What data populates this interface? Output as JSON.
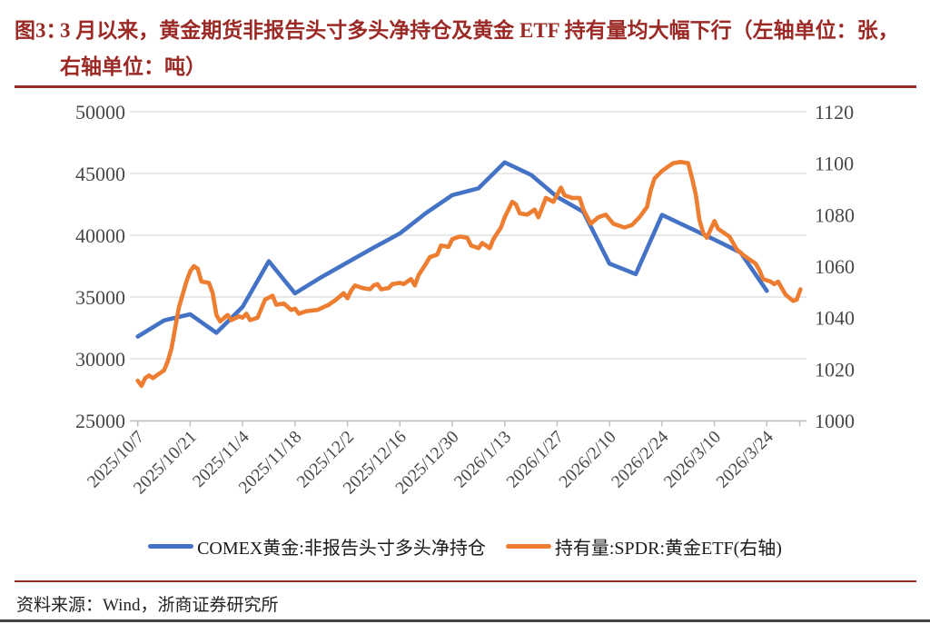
{
  "page": {
    "figure_label": "图3：",
    "figure_title": "3 月以来，黄金期货非报告头寸多头净持仓及黄金 ETF 持有量均大幅下行（左轴单位：张，右轴单位：吨）",
    "source": "资料来源：Wind，浙商证券研究所"
  },
  "colors": {
    "title_red": "#9B2A26",
    "rule_red": "#9B2A26",
    "blue_series": "#4472C4",
    "orange_series": "#ED7D31",
    "grid": "#D9D9D9",
    "axis": "#BFBFBF",
    "tick_text": "#484848",
    "bottom_border": "#444444"
  },
  "chart_data": {
    "type": "line",
    "dual_axis": true,
    "grid": "horizontal",
    "legend_position": "bottom",
    "x_tick_labels": [
      "2025/10/7",
      "2025/10/21",
      "2025/11/4",
      "2025/11/18",
      "2025/12/2",
      "2025/12/16",
      "2025/12/30",
      "2026/1/13",
      "2026/1/27",
      "2026/2/10",
      "2026/2/24",
      "2026/3/10",
      "2026/3/24"
    ],
    "x_tick_days": [
      0,
      14,
      28,
      42,
      56,
      70,
      84,
      98,
      112,
      126,
      140,
      154,
      168
    ],
    "left_axis": {
      "min": 25000,
      "max": 50000,
      "step": 5000,
      "unit": "张",
      "tick_labels": [
        "25000",
        "30000",
        "35000",
        "40000",
        "45000",
        "50000"
      ]
    },
    "right_axis": {
      "min": 1000,
      "max": 1120,
      "step": 20,
      "unit": "吨",
      "tick_labels": [
        "1000",
        "1020",
        "1040",
        "1060",
        "1080",
        "1100",
        "1120"
      ]
    },
    "series": [
      {
        "name": "COMEX黄金:非报告头寸多头净持仓",
        "axis": "left",
        "color": "#4472C4",
        "points": [
          [
            0,
            31800
          ],
          [
            7,
            33100
          ],
          [
            14,
            33600
          ],
          [
            21,
            32100
          ],
          [
            28,
            34200
          ],
          [
            35,
            37900
          ],
          [
            42,
            35300
          ],
          [
            49,
            36600
          ],
          [
            56,
            37800
          ],
          [
            63,
            39000
          ],
          [
            70,
            40150
          ],
          [
            77,
            41800
          ],
          [
            84,
            43250
          ],
          [
            91,
            43800
          ],
          [
            98,
            45900
          ],
          [
            105,
            44900
          ],
          [
            112,
            43100
          ],
          [
            119,
            41900
          ],
          [
            126,
            37700
          ],
          [
            133,
            36850
          ],
          [
            140,
            41650
          ],
          [
            147,
            40650
          ],
          [
            154,
            39650
          ],
          [
            161,
            38600
          ],
          [
            168,
            35500
          ]
        ]
      },
      {
        "name": "持有量:SPDR:黄金ETF(右轴)",
        "axis": "right",
        "color": "#ED7D31",
        "points": [
          [
            0,
            1015.5
          ],
          [
            1,
            1013.5
          ],
          [
            2,
            1016.5
          ],
          [
            3,
            1017.5
          ],
          [
            4,
            1016.5
          ],
          [
            6,
            1018.5
          ],
          [
            7,
            1019.5
          ],
          [
            8,
            1023
          ],
          [
            9,
            1028
          ],
          [
            10,
            1036
          ],
          [
            11,
            1044
          ],
          [
            13,
            1054
          ],
          [
            14,
            1058
          ],
          [
            15,
            1060
          ],
          [
            16,
            1059
          ],
          [
            17,
            1054
          ],
          [
            19,
            1053.5
          ],
          [
            20,
            1049.5
          ],
          [
            21,
            1041
          ],
          [
            22,
            1038.5
          ],
          [
            24,
            1041
          ],
          [
            25,
            1039
          ],
          [
            27,
            1040.5
          ],
          [
            28,
            1040
          ],
          [
            29,
            1041.5
          ],
          [
            30,
            1039
          ],
          [
            32,
            1040
          ],
          [
            34,
            1047
          ],
          [
            36,
            1048.5
          ],
          [
            37,
            1045
          ],
          [
            39,
            1045.5
          ],
          [
            41,
            1043
          ],
          [
            42,
            1043.5
          ],
          [
            43,
            1041.5
          ],
          [
            45,
            1042.5
          ],
          [
            48,
            1043
          ],
          [
            51,
            1045
          ],
          [
            53,
            1047
          ],
          [
            55,
            1049.5
          ],
          [
            56,
            1047.5
          ],
          [
            57,
            1050.5
          ],
          [
            58,
            1052.5
          ],
          [
            60,
            1051.5
          ],
          [
            62,
            1051
          ],
          [
            63,
            1052.5
          ],
          [
            64,
            1053
          ],
          [
            65,
            1051
          ],
          [
            67,
            1051.5
          ],
          [
            68,
            1053
          ],
          [
            70,
            1053.5
          ],
          [
            71,
            1053
          ],
          [
            73,
            1055
          ],
          [
            74,
            1052.5
          ],
          [
            75,
            1056.5
          ],
          [
            77,
            1061
          ],
          [
            78,
            1063.5
          ],
          [
            80,
            1064.5
          ],
          [
            81,
            1068
          ],
          [
            83,
            1067.5
          ],
          [
            84,
            1070.5
          ],
          [
            86,
            1071.5
          ],
          [
            88,
            1071
          ],
          [
            89,
            1068
          ],
          [
            91,
            1067
          ],
          [
            92,
            1069
          ],
          [
            94,
            1067
          ],
          [
            95,
            1070.5
          ],
          [
            97,
            1075
          ],
          [
            98,
            1079
          ],
          [
            100,
            1085
          ],
          [
            101,
            1084
          ],
          [
            102,
            1080.5
          ],
          [
            104,
            1080
          ],
          [
            106,
            1082
          ],
          [
            107,
            1079
          ],
          [
            109,
            1086.5
          ],
          [
            111,
            1085
          ],
          [
            113,
            1090.5
          ],
          [
            114,
            1087.5
          ],
          [
            116,
            1086.5
          ],
          [
            118,
            1086.5
          ],
          [
            119,
            1082
          ],
          [
            121,
            1076.5
          ],
          [
            123,
            1079
          ],
          [
            125,
            1080
          ],
          [
            127,
            1076.5
          ],
          [
            130,
            1075
          ],
          [
            132,
            1076
          ],
          [
            134,
            1079
          ],
          [
            136,
            1083
          ],
          [
            137,
            1089.5
          ],
          [
            138,
            1094
          ],
          [
            140,
            1097
          ],
          [
            141,
            1098
          ],
          [
            143,
            1100
          ],
          [
            145,
            1100.5
          ],
          [
            147,
            1100
          ],
          [
            148,
            1094.5
          ],
          [
            149,
            1088
          ],
          [
            150,
            1078
          ],
          [
            151,
            1073
          ],
          [
            152,
            1071
          ],
          [
            154,
            1077.5
          ],
          [
            155,
            1074.5
          ],
          [
            157,
            1072.5
          ],
          [
            158,
            1071.5
          ],
          [
            160,
            1066.5
          ],
          [
            162,
            1064
          ],
          [
            163,
            1063
          ],
          [
            165,
            1061
          ],
          [
            166,
            1058.5
          ],
          [
            167,
            1055
          ],
          [
            169,
            1054
          ],
          [
            170,
            1053
          ],
          [
            171,
            1054
          ],
          [
            172,
            1051.5
          ],
          [
            173,
            1049
          ],
          [
            175,
            1046.5
          ],
          [
            176,
            1047
          ],
          [
            177,
            1051
          ]
        ]
      }
    ]
  }
}
